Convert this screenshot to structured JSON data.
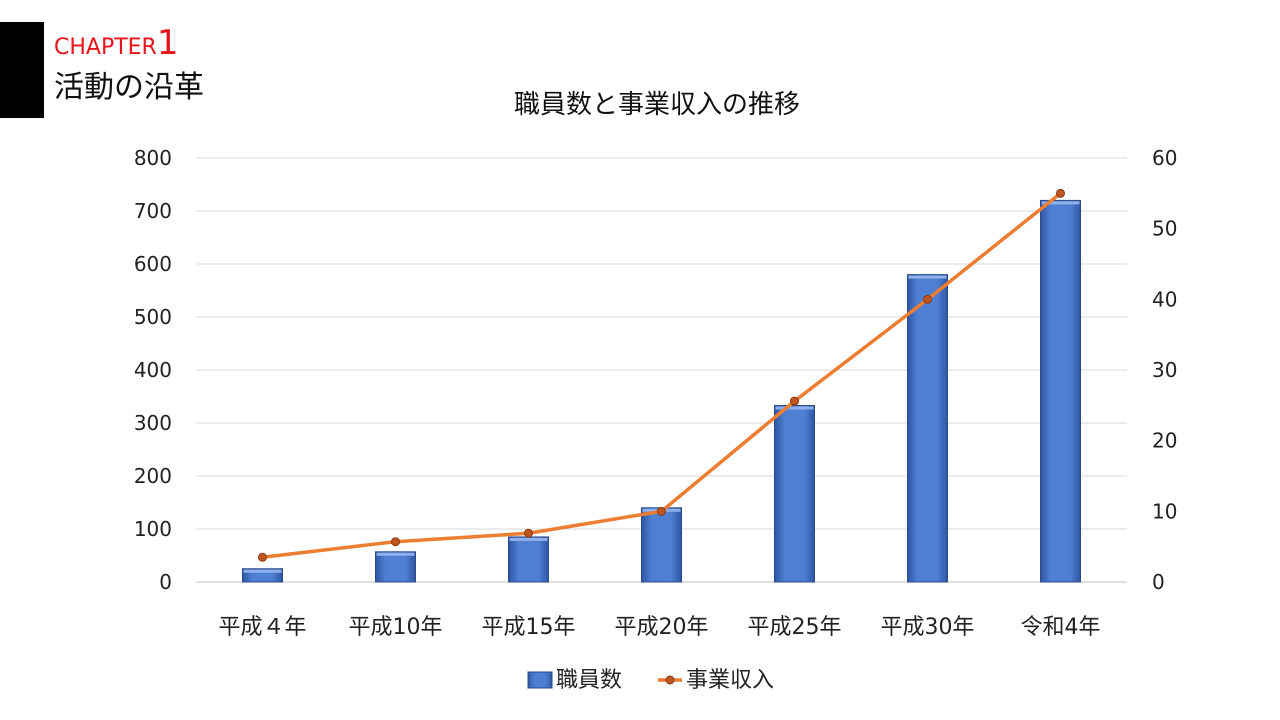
{
  "header": {
    "chapter_label": "CHAPTER",
    "chapter_number": "1",
    "section_title": "活動の沿革"
  },
  "colors": {
    "bar": "#4472C4",
    "line": "#ED7D31",
    "chapter": "#E8141C"
  },
  "chart_data": {
    "type": "bar",
    "title": "職員数と事業収入の推移",
    "categories": [
      "平成４年",
      "平成10年",
      "平成15年",
      "平成20年",
      "平成25年",
      "平成30年",
      "令和4年"
    ],
    "series": [
      {
        "name": "職員数",
        "type": "bar",
        "axis": "left",
        "values": [
          25,
          57,
          85,
          140,
          333,
          580,
          720
        ]
      },
      {
        "name": "事業収入",
        "type": "line",
        "axis": "right",
        "values": [
          3.5,
          5.7,
          6.9,
          10,
          25.6,
          40,
          55
        ]
      }
    ],
    "y_left": {
      "min": 0,
      "max": 800,
      "ticks": [
        0,
        100,
        200,
        300,
        400,
        500,
        600,
        700,
        800
      ]
    },
    "y_right": {
      "min": 0,
      "max": 60,
      "ticks": [
        0,
        10,
        20,
        30,
        40,
        50,
        60
      ]
    },
    "grid": true,
    "legend_position": "bottom"
  }
}
